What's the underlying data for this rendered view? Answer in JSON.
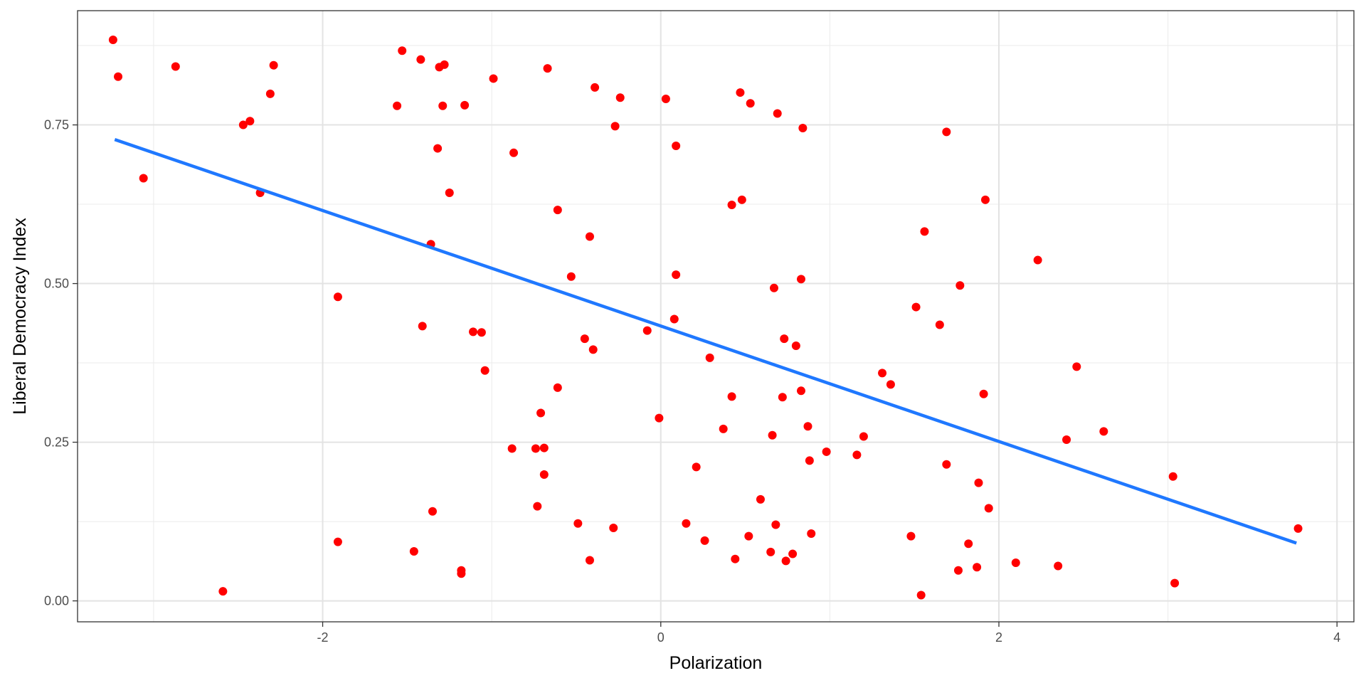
{
  "chart_data": {
    "type": "scatter",
    "title": "",
    "xlabel": "Polarization",
    "ylabel": "Liberal Democracy Index",
    "xlim": [
      -3.45,
      4.1
    ],
    "ylim": [
      -0.033,
      0.93
    ],
    "x_ticks": [
      -2,
      0,
      2,
      4
    ],
    "x_tick_labels": [
      "-2",
      "0",
      "2",
      "4"
    ],
    "y_ticks": [
      0,
      0.25,
      0.5,
      0.75
    ],
    "y_tick_labels": [
      "0.00",
      "0.25",
      "0.50",
      "0.75"
    ],
    "grid": true,
    "colors": {
      "points": "#ff0000",
      "fit_line": "#1f78ff"
    },
    "fit_line": {
      "x": [
        -3.23,
        3.76
      ],
      "y": [
        0.727,
        0.091
      ]
    },
    "points": [
      {
        "x": -3.24,
        "y": 0.884
      },
      {
        "x": -3.21,
        "y": 0.826
      },
      {
        "x": -3.06,
        "y": 0.666
      },
      {
        "x": -2.87,
        "y": 0.842
      },
      {
        "x": -2.59,
        "y": 0.015
      },
      {
        "x": -2.47,
        "y": 0.75
      },
      {
        "x": -2.43,
        "y": 0.756
      },
      {
        "x": -2.37,
        "y": 0.643
      },
      {
        "x": -2.31,
        "y": 0.799
      },
      {
        "x": -2.29,
        "y": 0.844
      },
      {
        "x": -1.91,
        "y": 0.479
      },
      {
        "x": -1.91,
        "y": 0.093
      },
      {
        "x": -1.56,
        "y": 0.78
      },
      {
        "x": -1.53,
        "y": 0.867
      },
      {
        "x": -1.46,
        "y": 0.078
      },
      {
        "x": -1.42,
        "y": 0.853
      },
      {
        "x": -1.41,
        "y": 0.433
      },
      {
        "x": -1.36,
        "y": 0.562
      },
      {
        "x": -1.35,
        "y": 0.141
      },
      {
        "x": -1.32,
        "y": 0.713
      },
      {
        "x": -1.31,
        "y": 0.841
      },
      {
        "x": -1.29,
        "y": 0.78
      },
      {
        "x": -1.28,
        "y": 0.845
      },
      {
        "x": -1.25,
        "y": 0.643
      },
      {
        "x": -1.18,
        "y": 0.048
      },
      {
        "x": -1.18,
        "y": 0.043
      },
      {
        "x": -1.16,
        "y": 0.781
      },
      {
        "x": -1.11,
        "y": 0.424
      },
      {
        "x": -1.06,
        "y": 0.423
      },
      {
        "x": -1.04,
        "y": 0.363
      },
      {
        "x": -0.99,
        "y": 0.823
      },
      {
        "x": -0.88,
        "y": 0.24
      },
      {
        "x": -0.87,
        "y": 0.706
      },
      {
        "x": -0.74,
        "y": 0.24
      },
      {
        "x": -0.73,
        "y": 0.149
      },
      {
        "x": -0.71,
        "y": 0.296
      },
      {
        "x": -0.69,
        "y": 0.241
      },
      {
        "x": -0.69,
        "y": 0.199
      },
      {
        "x": -0.67,
        "y": 0.839
      },
      {
        "x": -0.61,
        "y": 0.616
      },
      {
        "x": -0.61,
        "y": 0.336
      },
      {
        "x": -0.53,
        "y": 0.511
      },
      {
        "x": -0.49,
        "y": 0.122
      },
      {
        "x": -0.45,
        "y": 0.413
      },
      {
        "x": -0.42,
        "y": 0.574
      },
      {
        "x": -0.42,
        "y": 0.064
      },
      {
        "x": -0.4,
        "y": 0.396
      },
      {
        "x": -0.39,
        "y": 0.809
      },
      {
        "x": -0.28,
        "y": 0.115
      },
      {
        "x": -0.27,
        "y": 0.748
      },
      {
        "x": -0.24,
        "y": 0.793
      },
      {
        "x": -0.08,
        "y": 0.426
      },
      {
        "x": -0.01,
        "y": 0.288
      },
      {
        "x": 0.03,
        "y": 0.791
      },
      {
        "x": 0.08,
        "y": 0.444
      },
      {
        "x": 0.09,
        "y": 0.514
      },
      {
        "x": 0.09,
        "y": 0.717
      },
      {
        "x": 0.15,
        "y": 0.122
      },
      {
        "x": 0.21,
        "y": 0.211
      },
      {
        "x": 0.26,
        "y": 0.095
      },
      {
        "x": 0.29,
        "y": 0.383
      },
      {
        "x": 0.37,
        "y": 0.271
      },
      {
        "x": 0.42,
        "y": 0.322
      },
      {
        "x": 0.42,
        "y": 0.624
      },
      {
        "x": 0.44,
        "y": 0.066
      },
      {
        "x": 0.47,
        "y": 0.801
      },
      {
        "x": 0.48,
        "y": 0.632
      },
      {
        "x": 0.52,
        "y": 0.102
      },
      {
        "x": 0.53,
        "y": 0.784
      },
      {
        "x": 0.59,
        "y": 0.16
      },
      {
        "x": 0.65,
        "y": 0.077
      },
      {
        "x": 0.66,
        "y": 0.261
      },
      {
        "x": 0.67,
        "y": 0.493
      },
      {
        "x": 0.68,
        "y": 0.12
      },
      {
        "x": 0.69,
        "y": 0.768
      },
      {
        "x": 0.72,
        "y": 0.321
      },
      {
        "x": 0.73,
        "y": 0.413
      },
      {
        "x": 0.74,
        "y": 0.063
      },
      {
        "x": 0.78,
        "y": 0.074
      },
      {
        "x": 0.8,
        "y": 0.402
      },
      {
        "x": 0.83,
        "y": 0.507
      },
      {
        "x": 0.83,
        "y": 0.331
      },
      {
        "x": 0.84,
        "y": 0.745
      },
      {
        "x": 0.87,
        "y": 0.275
      },
      {
        "x": 0.88,
        "y": 0.221
      },
      {
        "x": 0.89,
        "y": 0.106
      },
      {
        "x": 0.98,
        "y": 0.235
      },
      {
        "x": 1.16,
        "y": 0.23
      },
      {
        "x": 1.2,
        "y": 0.259
      },
      {
        "x": 1.31,
        "y": 0.359
      },
      {
        "x": 1.36,
        "y": 0.341
      },
      {
        "x": 1.48,
        "y": 0.102
      },
      {
        "x": 1.51,
        "y": 0.463
      },
      {
        "x": 1.54,
        "y": 0.009
      },
      {
        "x": 1.56,
        "y": 0.582
      },
      {
        "x": 1.65,
        "y": 0.435
      },
      {
        "x": 1.69,
        "y": 0.215
      },
      {
        "x": 1.69,
        "y": 0.739
      },
      {
        "x": 1.76,
        "y": 0.048
      },
      {
        "x": 1.77,
        "y": 0.497
      },
      {
        "x": 1.82,
        "y": 0.09
      },
      {
        "x": 1.87,
        "y": 0.053
      },
      {
        "x": 1.88,
        "y": 0.186
      },
      {
        "x": 1.91,
        "y": 0.326
      },
      {
        "x": 1.92,
        "y": 0.632
      },
      {
        "x": 1.94,
        "y": 0.146
      },
      {
        "x": 2.1,
        "y": 0.06
      },
      {
        "x": 2.23,
        "y": 0.537
      },
      {
        "x": 2.35,
        "y": 0.055
      },
      {
        "x": 2.4,
        "y": 0.254
      },
      {
        "x": 2.46,
        "y": 0.369
      },
      {
        "x": 2.62,
        "y": 0.267
      },
      {
        "x": 3.03,
        "y": 0.196
      },
      {
        "x": 3.04,
        "y": 0.028
      },
      {
        "x": 3.77,
        "y": 0.114
      }
    ]
  }
}
